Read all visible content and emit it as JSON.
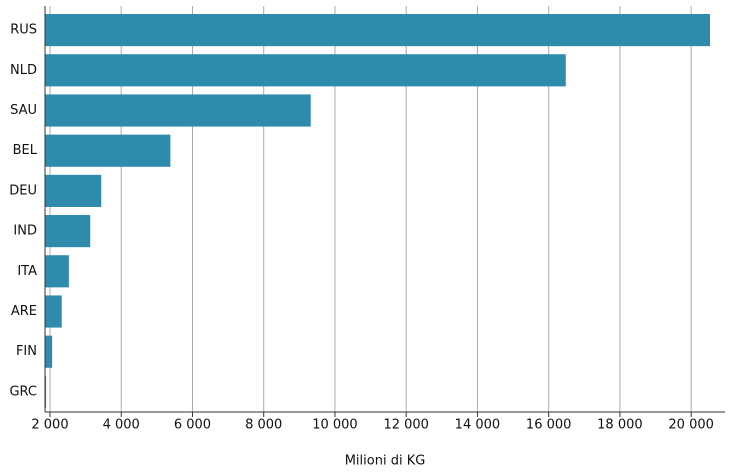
{
  "chart_data": {
    "type": "bar",
    "orientation": "horizontal",
    "x_label": "Milioni di KG",
    "categories": [
      "RUS",
      "NLD",
      "SAU",
      "BEL",
      "DEU",
      "IND",
      "ITA",
      "ARE",
      "FIN",
      "GRC"
    ],
    "values": [
      20530,
      16480,
      9320,
      5380,
      3440,
      3130,
      2530,
      2330,
      2060,
      1890
    ],
    "color": "#2e8bac",
    "xlim": [
      1860,
      20950
    ],
    "xticks": [
      {
        "value": 2000,
        "label": "2 000"
      },
      {
        "value": 4000,
        "label": "4 000"
      },
      {
        "value": 6000,
        "label": "6 000"
      },
      {
        "value": 8000,
        "label": "8 000"
      },
      {
        "value": 10000,
        "label": "10 000"
      },
      {
        "value": 12000,
        "label": "12 000"
      },
      {
        "value": 14000,
        "label": "14 000"
      },
      {
        "value": 16000,
        "label": "16 000"
      },
      {
        "value": 18000,
        "label": "18 000"
      },
      {
        "value": 20000,
        "label": "20 000"
      }
    ],
    "grid": true
  }
}
